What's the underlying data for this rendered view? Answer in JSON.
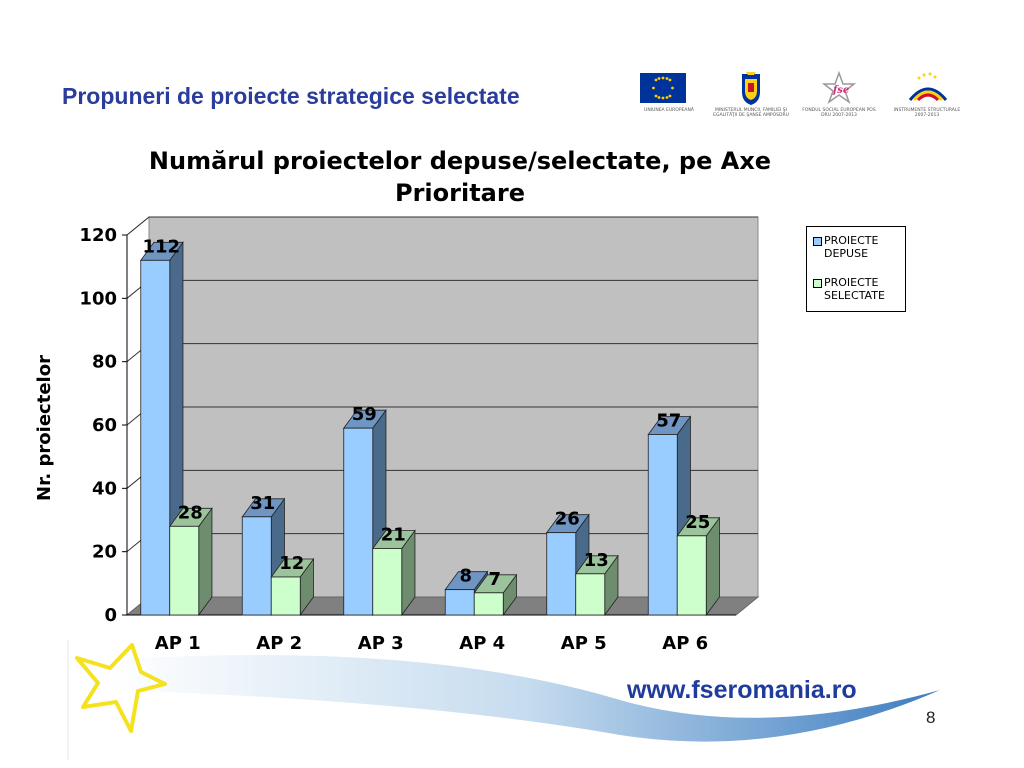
{
  "slide": {
    "title": "Propuneri de proiecte strategice selectate",
    "url": "www.fseromania.ro",
    "page_number": "8"
  },
  "logos": [
    {
      "icon": "eu-flag-icon",
      "caption": "UNIUNEA EUROPEANĂ"
    },
    {
      "icon": "romania-coat-of-arms-icon",
      "caption": "MINISTERUL MUNCII, FAMILIEI ŞI EGALITĂŢII DE ŞANSE AMPOSDRU"
    },
    {
      "icon": "fse-logo-icon",
      "caption": "FONDUL SOCIAL EUROPEAN POS DRU 2007-2013"
    },
    {
      "icon": "structural-instruments-icon",
      "caption": "INSTRUMENTE STRUCTURALE 2007-2013"
    }
  ],
  "colors": {
    "title": "#2a3c9c",
    "depuse": "#99ccff",
    "selectate": "#ccffcc",
    "plot_bg": "#c0c0c0",
    "url": "#1f3c9c"
  },
  "chart_data": {
    "type": "bar",
    "title": "Numărul proiectelor depuse/selectate, pe Axe Prioritare",
    "ylabel": "Nr. proiectelor",
    "xlabel": "",
    "categories": [
      "AP 1",
      "AP 2",
      "AP 3",
      "AP 4",
      "AP 5",
      "AP 6"
    ],
    "series": [
      {
        "name": "PROIECTE DEPUSE",
        "values": [
          112,
          31,
          59,
          8,
          26,
          57
        ]
      },
      {
        "name": "PROIECTE SELECTATE",
        "values": [
          28,
          12,
          21,
          7,
          13,
          25
        ]
      }
    ],
    "ylim": [
      0,
      120
    ],
    "yticks": [
      0,
      20,
      40,
      60,
      80,
      100,
      120
    ],
    "grid": true,
    "legend": "right",
    "three_d": true
  }
}
